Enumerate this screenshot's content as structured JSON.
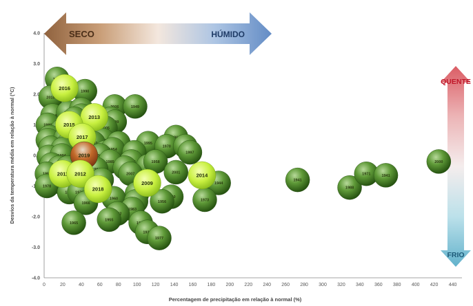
{
  "chart_data": {
    "type": "scatter",
    "title": "",
    "xlabel": "Percentagem de precipitação em relação à normal (%)",
    "ylabel": "Desvios da temperatura média em relação à normal  (°C)",
    "xlim": [
      0,
      450
    ],
    "ylim": [
      -4.0,
      4.0
    ],
    "x_ticks": [
      "0",
      "20",
      "40",
      "60",
      "80",
      "100",
      "120",
      "140",
      "160",
      "180",
      "200",
      "220",
      "240",
      "260",
      "280",
      "300",
      "320",
      "340",
      "360",
      "380",
      "400",
      "420",
      "440"
    ],
    "y_ticks": [
      "4.0",
      "3.0",
      "2.0",
      "1.0",
      "0.0",
      "-1.0",
      "-2.0",
      "-3.0",
      "-4.0"
    ],
    "grid": false,
    "annotations": {
      "dry_label": "SECO",
      "wet_label": "HÚMIDO",
      "hot_label": "QUENTE",
      "cold_label": "FRIO"
    },
    "colors": {
      "dry_arrow": "#8a5a34",
      "wet_arrow": "#5b86c2",
      "hot_arrow": "#d9555d",
      "cold_arrow": "#5aaec9",
      "bubble": "#3f7a22",
      "highlight_bubble": "#c8f040",
      "bubble_2019": "#a6481c"
    },
    "points": [
      {
        "label": "1989",
        "x": 14,
        "y": 2.5
      },
      {
        "label": "2016",
        "x": 22,
        "y": 2.2,
        "highlight": true
      },
      {
        "label": "2010",
        "x": 7,
        "y": 1.9
      },
      {
        "label": "1990",
        "x": 44,
        "y": 2.1
      },
      {
        "label": "2006",
        "x": 76,
        "y": 1.6
      },
      {
        "label": "1949",
        "x": 98,
        "y": 1.6
      },
      {
        "label": "2004",
        "x": 9,
        "y": 1.3
      },
      {
        "label": "1961",
        "x": 26,
        "y": 1.4
      },
      {
        "label": "1969",
        "x": 40,
        "y": 1.5
      },
      {
        "label": "1996",
        "x": 40,
        "y": 1.3
      },
      {
        "label": "1991",
        "x": 33,
        "y": 1.2
      },
      {
        "label": "2013",
        "x": 54,
        "y": 1.25,
        "highlight": true
      },
      {
        "label": "1995",
        "x": 72,
        "y": 1.2
      },
      {
        "label": "1999",
        "x": 76,
        "y": 1.1
      },
      {
        "label": "2015",
        "x": 27,
        "y": 1.0,
        "highlight": true
      },
      {
        "label": "1980",
        "x": 4,
        "y": 1.0
      },
      {
        "label": "1974",
        "x": 19,
        "y": 0.8
      },
      {
        "label": "1958",
        "x": 47,
        "y": 0.8
      },
      {
        "label": "2005",
        "x": 66,
        "y": 0.9
      },
      {
        "label": "1975",
        "x": 6,
        "y": 0.6
      },
      {
        "label": "1979",
        "x": 4,
        "y": 0.5
      },
      {
        "label": "2017",
        "x": 41,
        "y": 0.6,
        "highlight": true
      },
      {
        "label": "1992",
        "x": 23,
        "y": 0.55
      },
      {
        "label": "1983",
        "x": 27,
        "y": 0.4
      },
      {
        "label": "1998",
        "x": 63,
        "y": 0.5
      },
      {
        "label": "2002",
        "x": 53,
        "y": 0.4
      },
      {
        "label": "1957",
        "x": 80,
        "y": 0.4
      },
      {
        "label": "1995",
        "x": 112,
        "y": 0.4
      },
      {
        "label": "1963",
        "x": 142,
        "y": 0.6
      },
      {
        "label": "1970",
        "x": 132,
        "y": 0.3
      },
      {
        "label": "1987",
        "x": 152,
        "y": 0.3
      },
      {
        "label": "1997",
        "x": 157,
        "y": 0.1
      },
      {
        "label": "1947",
        "x": 7,
        "y": 0.25
      },
      {
        "label": "1970",
        "x": 20,
        "y": 0.2
      },
      {
        "label": "1952",
        "x": 66,
        "y": 0.1
      },
      {
        "label": "1954",
        "x": 74,
        "y": 0.2
      },
      {
        "label": "1964",
        "x": 97,
        "y": 0.1
      },
      {
        "label": "1948",
        "x": 5,
        "y": -0.05
      },
      {
        "label": "1994",
        "x": 19,
        "y": 0.0
      },
      {
        "label": "2019",
        "x": 43,
        "y": 0.0,
        "special": true
      },
      {
        "label": "1960",
        "x": 60,
        "y": 0.0
      },
      {
        "label": "1985",
        "x": 71,
        "y": -0.2
      },
      {
        "label": "1952",
        "x": 94,
        "y": -0.2
      },
      {
        "label": "1968",
        "x": 8,
        "y": -0.3
      },
      {
        "label": "1954",
        "x": 16,
        "y": -0.4
      },
      {
        "label": "1975",
        "x": 25,
        "y": -0.4
      },
      {
        "label": "1984",
        "x": 56,
        "y": -0.45
      },
      {
        "label": "2003",
        "x": 87,
        "y": -0.4
      },
      {
        "label": "1951",
        "x": 112,
        "y": -0.35
      },
      {
        "label": "1958",
        "x": 120,
        "y": -0.2
      },
      {
        "label": "1950",
        "x": 3,
        "y": -0.6
      },
      {
        "label": "2011",
        "x": 20,
        "y": -0.6,
        "highlight": true
      },
      {
        "label": "2012",
        "x": 39,
        "y": -0.6,
        "highlight": true
      },
      {
        "label": "2007",
        "x": 93,
        "y": -0.6
      },
      {
        "label": "2001",
        "x": 142,
        "y": -0.55
      },
      {
        "label": "2014",
        "x": 170,
        "y": -0.65,
        "highlight": true
      },
      {
        "label": "1953",
        "x": 30,
        "y": -0.85
      },
      {
        "label": "1962",
        "x": 22,
        "y": -0.95
      },
      {
        "label": "1945",
        "x": 43,
        "y": -0.8
      },
      {
        "label": "1986",
        "x": 62,
        "y": -0.8
      },
      {
        "label": "2009",
        "x": 111,
        "y": -0.9,
        "highlight": true
      },
      {
        "label": "1944",
        "x": 188,
        "y": -0.9
      },
      {
        "label": "1978",
        "x": 3,
        "y": -1.0
      },
      {
        "label": "2018",
        "x": 58,
        "y": -1.1,
        "highlight": true
      },
      {
        "label": "1956",
        "x": 27,
        "y": -1.2
      },
      {
        "label": "1976",
        "x": 38,
        "y": -1.2
      },
      {
        "label": "1972",
        "x": 100,
        "y": -1.25
      },
      {
        "label": "1940",
        "x": 137,
        "y": -1.35
      },
      {
        "label": "1966",
        "x": 45,
        "y": -1.55
      },
      {
        "label": "1960",
        "x": 75,
        "y": -1.4
      },
      {
        "label": "1959",
        "x": 99,
        "y": -1.5
      },
      {
        "label": "1956",
        "x": 127,
        "y": -1.5
      },
      {
        "label": "1973",
        "x": 173,
        "y": -1.45
      },
      {
        "label": "1983",
        "x": 95,
        "y": -1.75
      },
      {
        "label": "1982",
        "x": 79,
        "y": -1.9
      },
      {
        "label": "1955",
        "x": 70,
        "y": -2.1
      },
      {
        "label": "1936",
        "x": 104,
        "y": -2.2
      },
      {
        "label": "1965",
        "x": 32,
        "y": -2.2
      },
      {
        "label": "1932",
        "x": 111,
        "y": -2.5
      },
      {
        "label": "1977",
        "x": 124,
        "y": -2.7
      },
      {
        "label": "1941",
        "x": 273,
        "y": -0.8
      },
      {
        "label": "1988",
        "x": 329,
        "y": -1.05
      },
      {
        "label": "1971",
        "x": 347,
        "y": -0.6
      },
      {
        "label": "1941",
        "x": 368,
        "y": -0.65
      },
      {
        "label": "2000",
        "x": 425,
        "y": -0.2
      }
    ]
  }
}
